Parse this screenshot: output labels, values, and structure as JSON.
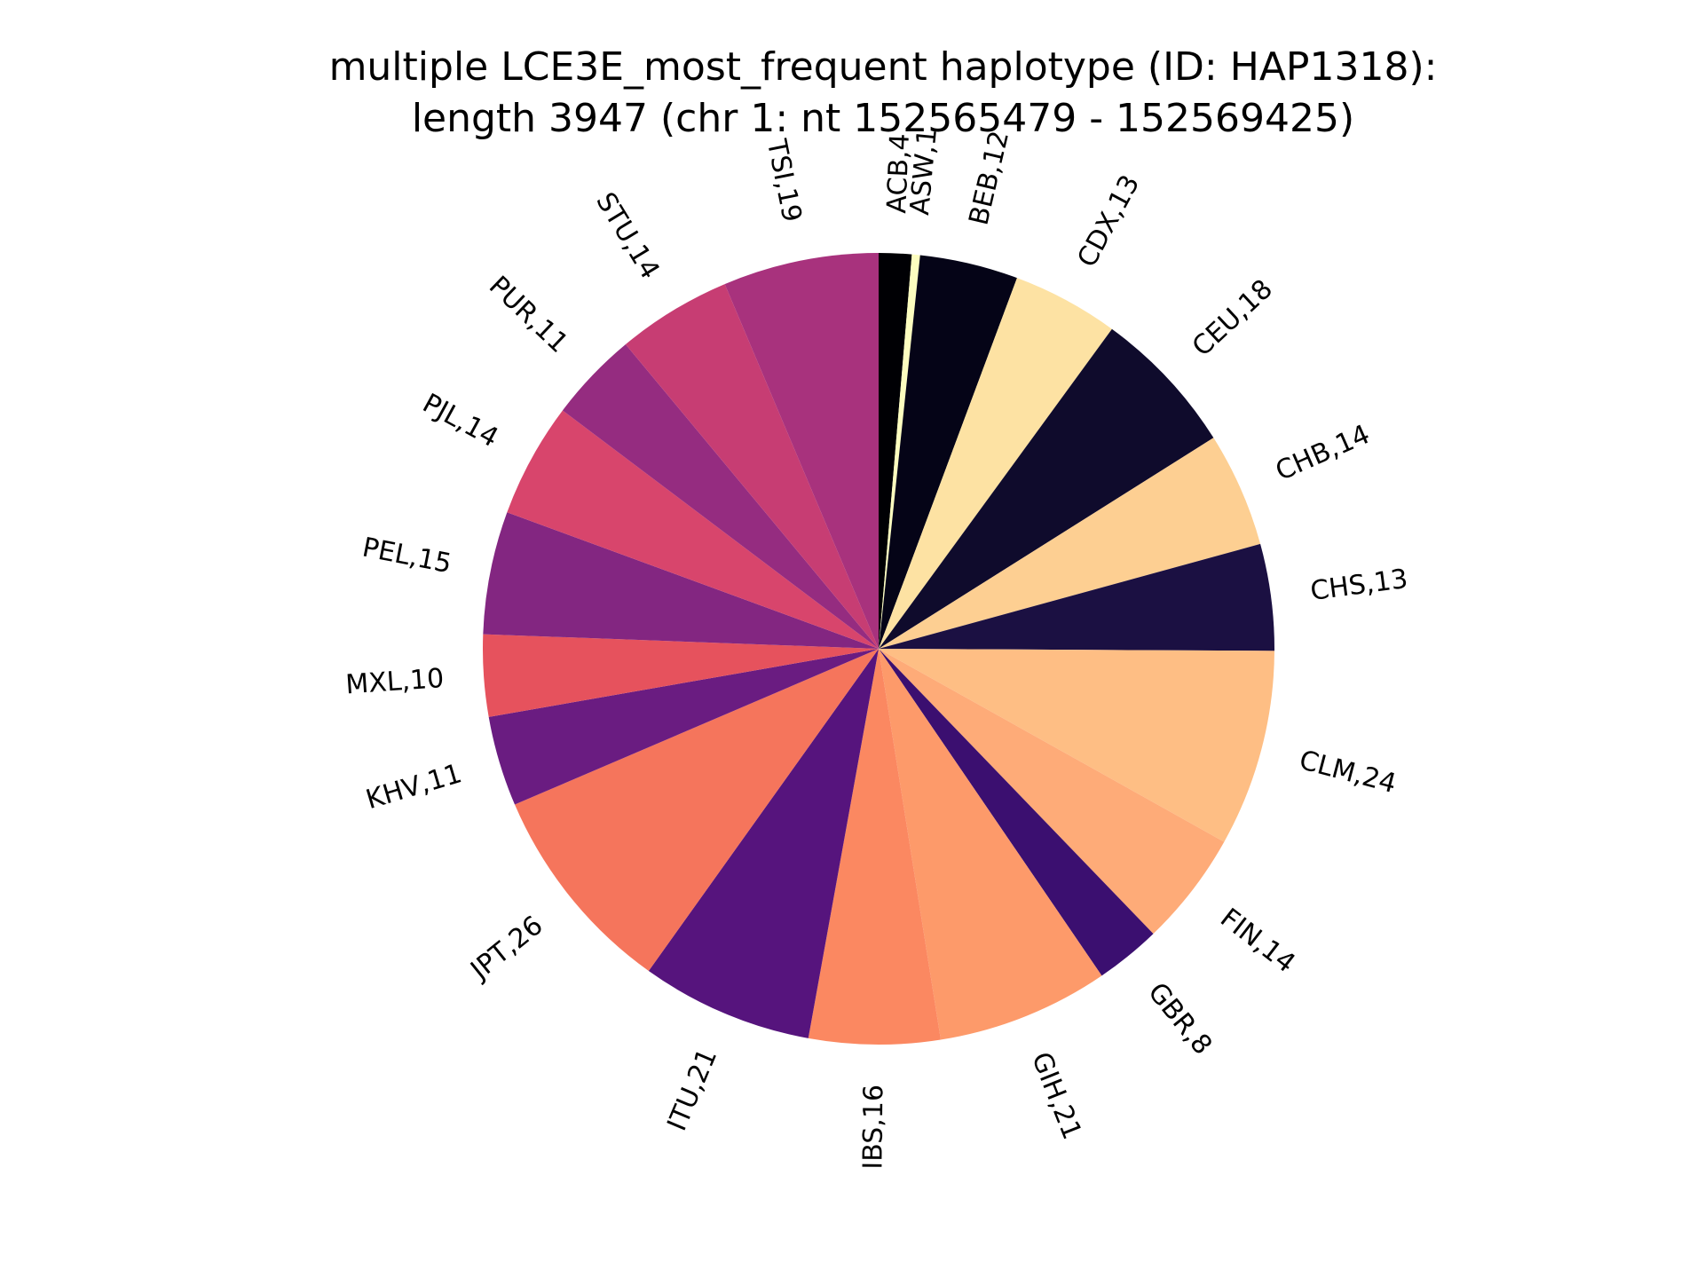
{
  "chart_data": {
    "type": "pie",
    "title": [
      "multiple LCE3E_most_frequent haplotype (ID: HAP1318):",
      "length 3947 (chr 1: nt 152565479 - 152569425)"
    ],
    "start_angle_deg": 90,
    "direction": "clockwise",
    "legend": "none",
    "slices": [
      {
        "label": "ACB,4",
        "value": 4,
        "color": "#000004"
      },
      {
        "label": "ASW,1",
        "value": 1,
        "color": "#fcfdbf"
      },
      {
        "label": "BEB,12",
        "value": 12,
        "color": "#050417"
      },
      {
        "label": "CDX,13",
        "value": 13,
        "color": "#fde2a3"
      },
      {
        "label": "CEU,18",
        "value": 18,
        "color": "#0f0b2c"
      },
      {
        "label": "CHB,14",
        "value": 14,
        "color": "#fdcf92"
      },
      {
        "label": "CHS,13",
        "value": 13,
        "color": "#1b1042"
      },
      {
        "label": "CLM,24",
        "value": 24,
        "color": "#febe84"
      },
      {
        "label": "FIN,14",
        "value": 14,
        "color": "#feab78"
      },
      {
        "label": "GBR,8",
        "value": 8,
        "color": "#3b0f70"
      },
      {
        "label": "GIH,21",
        "value": 21,
        "color": "#fd9a6a"
      },
      {
        "label": "IBS,16",
        "value": 16,
        "color": "#fb8861"
      },
      {
        "label": "ITU,21",
        "value": 21,
        "color": "#56147d"
      },
      {
        "label": "JPT,26",
        "value": 26,
        "color": "#f5755c"
      },
      {
        "label": "KHV,11",
        "value": 11,
        "color": "#6a1c81"
      },
      {
        "label": "MXL,10",
        "value": 10,
        "color": "#e6525d"
      },
      {
        "label": "PEL,15",
        "value": 15,
        "color": "#832681"
      },
      {
        "label": "PJL,14",
        "value": 14,
        "color": "#d8456c"
      },
      {
        "label": "PUR,11",
        "value": 11,
        "color": "#952c80"
      },
      {
        "label": "STU,14",
        "value": 14,
        "color": "#c73d73"
      },
      {
        "label": "TSI,19",
        "value": 19,
        "color": "#a8327d"
      }
    ]
  }
}
